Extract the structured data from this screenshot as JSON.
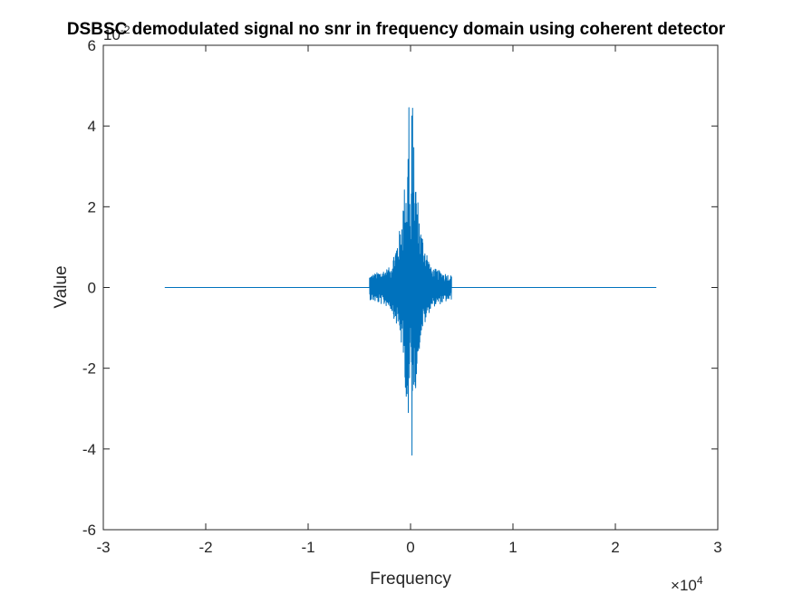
{
  "chart_data": {
    "type": "line",
    "title": "DSBSC demodulated signal no snr in frequency domain using coherent detector",
    "xlabel": "Frequency",
    "ylabel": "Value",
    "xlim": [
      -30000,
      30000
    ],
    "ylim": [
      -0.06,
      0.06
    ],
    "x_ticks": [
      -3,
      -2,
      -1,
      0,
      1,
      2,
      3
    ],
    "x_tick_labels": [
      "-3",
      "-2",
      "-1",
      "0",
      "1",
      "2",
      "3"
    ],
    "x_multiplier": {
      "base": "10",
      "exponent": "4"
    },
    "y_ticks": [
      -6,
      -4,
      -2,
      0,
      2,
      4,
      6
    ],
    "y_tick_labels": [
      "-6",
      "-4",
      "-2",
      "0",
      "2",
      "4",
      "6"
    ],
    "y_multiplier": {
      "base": "10",
      "exponent": "-2"
    },
    "grid": false,
    "series": [
      {
        "color": "#0072BD",
        "x_range": [
          -24000,
          24000
        ],
        "band_edge": 4000,
        "band_noise_amplitude": 0.003,
        "envelope": [
          {
            "x": -4000,
            "max": 0.003,
            "min": -0.003
          },
          {
            "x": -2000,
            "max": 0.005,
            "min": -0.005
          },
          {
            "x": -1000,
            "max": 0.015,
            "min": -0.012
          },
          {
            "x": -500,
            "max": 0.028,
            "min": -0.025
          },
          {
            "x": -300,
            "max": 0.03,
            "min": -0.031
          },
          {
            "x": -150,
            "max": 0.054,
            "min": -0.046
          },
          {
            "x": 0,
            "max": 0.006,
            "min": -0.008
          },
          {
            "x": 150,
            "max": 0.054,
            "min": -0.046
          },
          {
            "x": 300,
            "max": 0.036,
            "min": -0.025
          },
          {
            "x": 500,
            "max": 0.028,
            "min": -0.025
          },
          {
            "x": 1000,
            "max": 0.015,
            "min": -0.012
          },
          {
            "x": 2000,
            "max": 0.005,
            "min": -0.005
          },
          {
            "x": 4000,
            "max": 0.003,
            "min": -0.003
          }
        ]
      }
    ]
  }
}
